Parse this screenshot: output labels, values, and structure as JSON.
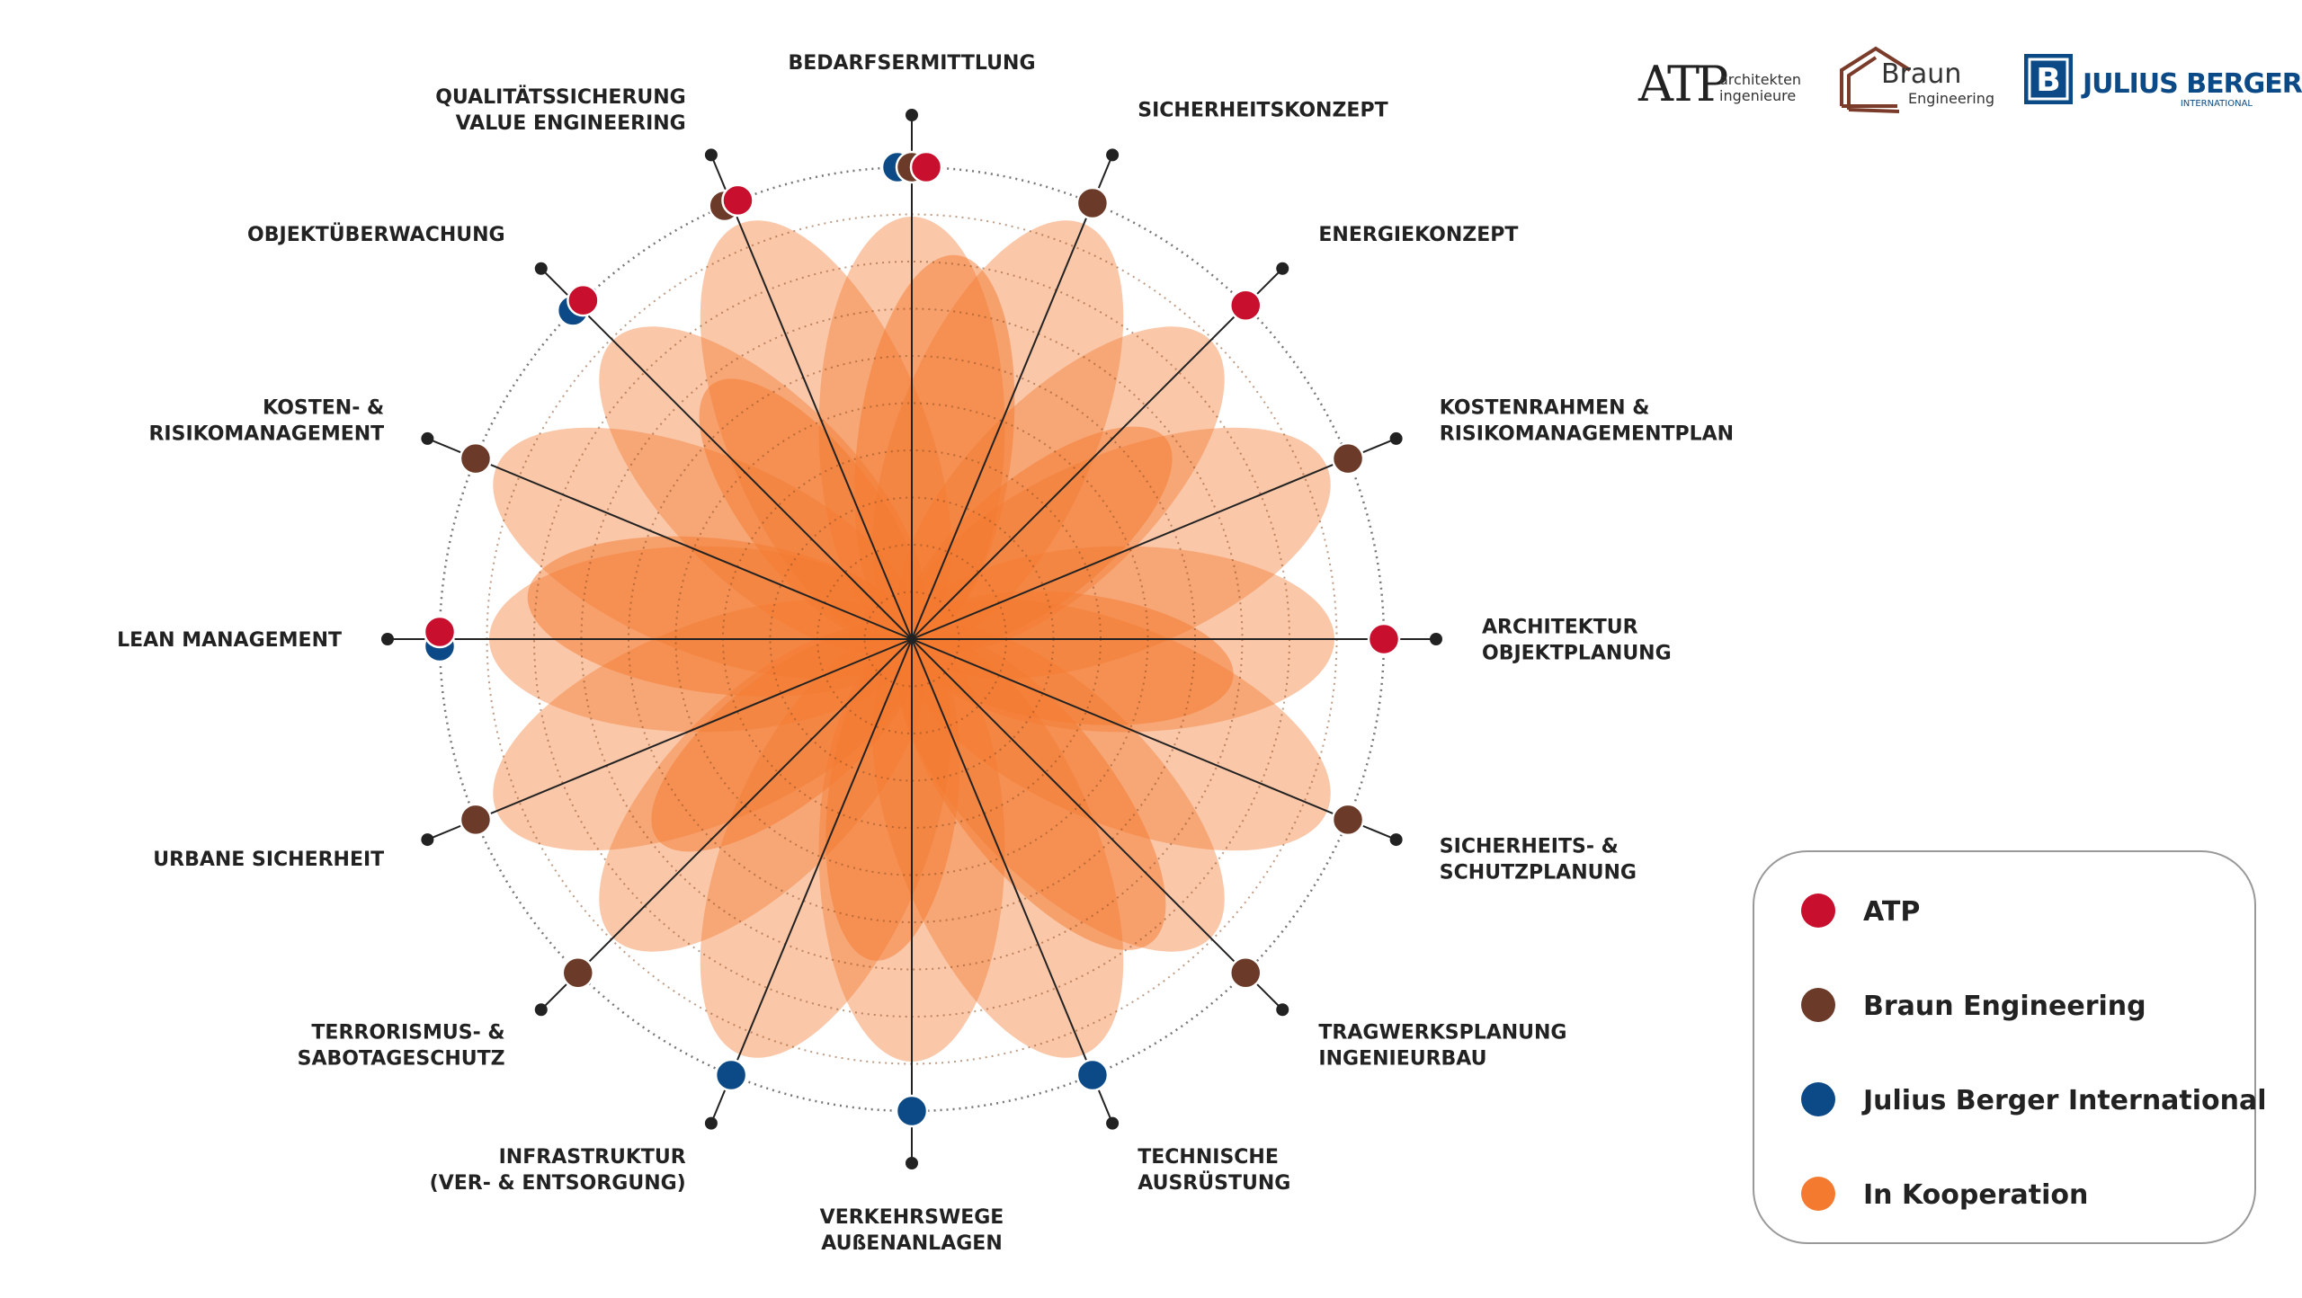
{
  "logos": {
    "atp": {
      "mark": "ATP",
      "lines": [
        "architekten",
        "ingenieure"
      ]
    },
    "braun": {
      "name": "Braun",
      "sub": "Engineering"
    },
    "jb": {
      "mark": "B",
      "name": "JULIUS BERGER",
      "sub": "INTERNATIONAL"
    }
  },
  "legend": [
    {
      "label": "ATP",
      "color": "#c8102e"
    },
    {
      "label": "Braun Engineering",
      "color": "#6b3a28"
    },
    {
      "label": "Julius Berger International",
      "color": "#0b4a86"
    },
    {
      "label": "In Kooperation",
      "color": "#f47a30"
    }
  ],
  "categories": [
    {
      "label": [
        "BEDARFSERMITTLUNG"
      ],
      "partners": [
        2,
        1,
        0
      ]
    },
    {
      "label": [
        "SICHERHEITSKONZEPT"
      ],
      "partners": [
        1
      ]
    },
    {
      "label": [
        "ENERGIEKONZEPT"
      ],
      "partners": [
        0
      ]
    },
    {
      "label": [
        "KOSTENRAHMEN &",
        "RISIKOMANAGEMENTPLAN"
      ],
      "partners": [
        1
      ]
    },
    {
      "label": [
        "ARCHITEKTUR",
        "OBJEKTPLANUNG"
      ],
      "partners": [
        0
      ]
    },
    {
      "label": [
        "SICHERHEITS- &",
        "SCHUTZPLANUNG"
      ],
      "partners": [
        1
      ]
    },
    {
      "label": [
        "TRAGWERKSPLANUNG",
        "INGENIEURBAU"
      ],
      "partners": [
        1
      ]
    },
    {
      "label": [
        "TECHNISCHE",
        "AUSRÜSTUNG"
      ],
      "partners": [
        2
      ]
    },
    {
      "label": [
        "VERKEHRSWEGE",
        "AUßENANLAGEN"
      ],
      "partners": [
        2
      ]
    },
    {
      "label": [
        "INFRASTRUKTUR",
        "(VER- & ENTSORGUNG)"
      ],
      "partners": [
        2
      ]
    },
    {
      "label": [
        "TERRORISMUS- &",
        "SABOTAGESCHUTZ"
      ],
      "partners": [
        1
      ]
    },
    {
      "label": [
        "URBANE SICHERHEIT"
      ],
      "partners": [
        1
      ]
    },
    {
      "label": [
        "LEAN MANAGEMENT"
      ],
      "partners": [
        2,
        0
      ]
    },
    {
      "label": [
        "KOSTEN- &",
        "RISIKOMANAGEMENT"
      ],
      "partners": [
        1
      ]
    },
    {
      "label": [
        "OBJEKTÜBERWACHUNG"
      ],
      "partners": [
        2,
        0
      ]
    },
    {
      "label": [
        "QUALITÄTSSICHERUNG",
        "VALUE ENGINEERING"
      ],
      "partners": [
        1,
        0
      ]
    }
  ]
}
